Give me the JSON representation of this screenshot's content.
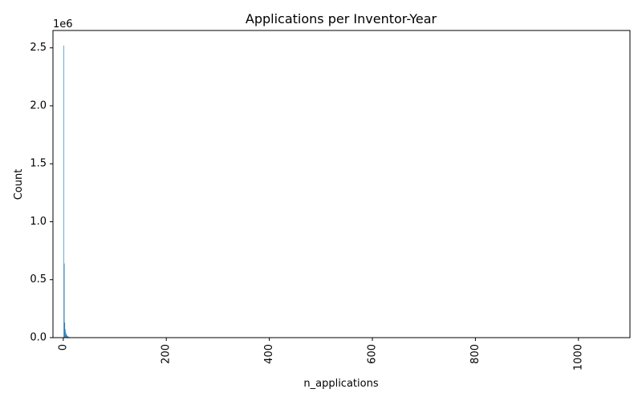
{
  "chart_data": {
    "type": "bar",
    "title": "Applications per Inventor-Year",
    "xlabel": "n_applications",
    "ylabel": "Count",
    "y_scale_label": "1e6",
    "xlim": [
      -20,
      1100
    ],
    "ylim": [
      0,
      2650000
    ],
    "x_ticks": [
      0,
      200,
      400,
      600,
      800,
      1000
    ],
    "x_tick_labels": [
      "0",
      "200",
      "400",
      "600",
      "800",
      "1000"
    ],
    "x_tick_rotation": -90,
    "y_ticks": [
      0,
      500000,
      1000000,
      1500000,
      2000000,
      2500000
    ],
    "y_tick_labels": [
      "0.0",
      "0.5",
      "1.0",
      "1.5",
      "2.0",
      "2.5"
    ],
    "grid": false,
    "color": "#1f77b4",
    "x": [
      1,
      2,
      3,
      4,
      5,
      6,
      7,
      8,
      9,
      10,
      11,
      12,
      13,
      14,
      15
    ],
    "values": [
      2520000,
      640000,
      130000,
      72000,
      45000,
      30000,
      21000,
      15000,
      11000,
      8000,
      6000,
      4500,
      3300,
      2500,
      1800
    ]
  }
}
